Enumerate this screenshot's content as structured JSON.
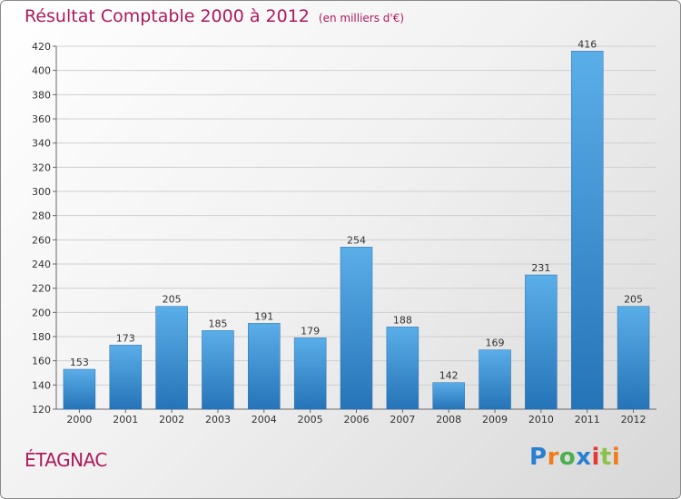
{
  "title": "Résultat Comptable 2000 à 2012",
  "unit_label": "(en milliers d'€)",
  "commune": "ÉTAGNAC",
  "logo": {
    "letters": [
      "P",
      "r",
      "o",
      "x",
      "i",
      "t",
      "i"
    ],
    "colors": [
      "#2a7fd1",
      "#f07d1a",
      "#4caf50",
      "#2a7fd1",
      "#e53935",
      "#8bc34a",
      "#f07d1a"
    ]
  },
  "colors": {
    "bar": "#4a9fe0",
    "bar_dark": "#2a78c0",
    "title": "#b0185a"
  },
  "chart_data": {
    "type": "bar",
    "categories": [
      "2000",
      "2001",
      "2002",
      "2003",
      "2004",
      "2005",
      "2006",
      "2007",
      "2008",
      "2009",
      "2010",
      "2011",
      "2012"
    ],
    "values": [
      153,
      173,
      205,
      185,
      191,
      179,
      254,
      188,
      142,
      169,
      231,
      416,
      205
    ],
    "ylim": [
      120,
      420
    ],
    "yticks": [
      120,
      140,
      160,
      180,
      200,
      220,
      240,
      260,
      280,
      300,
      320,
      340,
      360,
      380,
      400,
      420
    ],
    "grid": true
  }
}
